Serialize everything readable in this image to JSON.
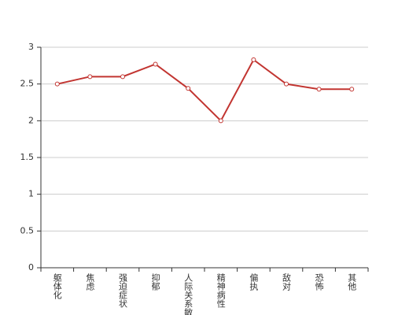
{
  "chart_data": {
    "type": "line",
    "categories": [
      "躯体化",
      "焦虑",
      "强迫症状",
      "抑郁",
      "人际关系敏感",
      "精神病性",
      "偏执",
      "敌对",
      "恐怖",
      "其他"
    ],
    "values": [
      2.5,
      2.6,
      2.6,
      2.77,
      2.44,
      2.0,
      2.83,
      2.5,
      2.43,
      2.43
    ],
    "color": "#c23531",
    "ylim": [
      0,
      3
    ],
    "yticks": [
      0,
      0.5,
      1,
      1.5,
      2,
      2.5,
      3
    ],
    "grid": true
  }
}
